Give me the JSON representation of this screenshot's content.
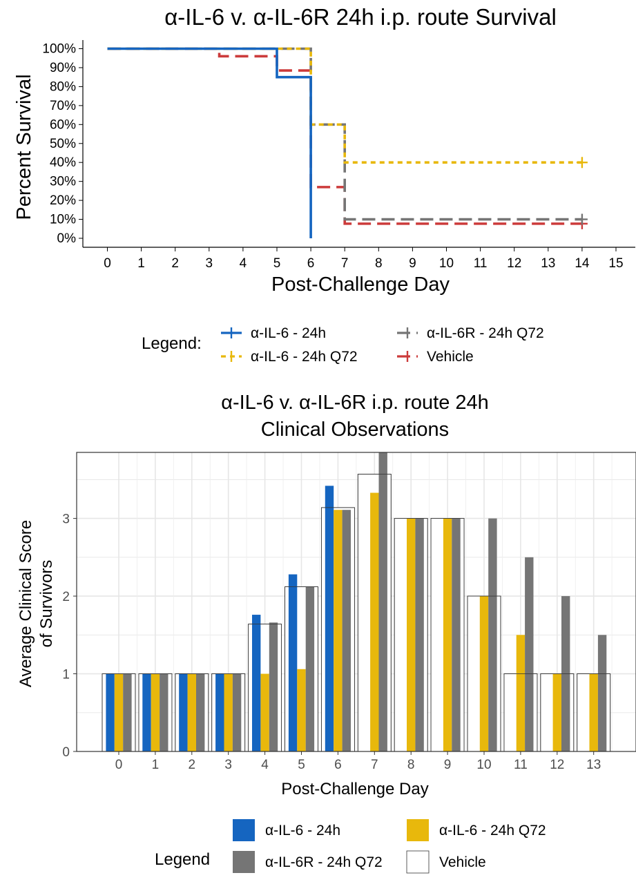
{
  "chart_data": [
    {
      "type": "line",
      "subtype": "kaplan-meier step",
      "title": "α-IL-6 v. α-IL-6R 24h i.p. route Survival",
      "xlabel": "Post-Challenge Day",
      "ylabel": "Percent Survival",
      "xlim": [
        0,
        15
      ],
      "ylim": [
        0,
        100
      ],
      "x_ticks": [
        "0",
        "1",
        "2",
        "3",
        "4",
        "5",
        "6",
        "7",
        "8",
        "9",
        "10",
        "11",
        "12",
        "13",
        "14",
        "15"
      ],
      "y_ticks": [
        "0%",
        "10%",
        "20%",
        "30%",
        "40%",
        "50%",
        "60%",
        "70%",
        "80%",
        "90%",
        "100%"
      ],
      "grid": false,
      "legend_title": "Legend:",
      "legend_position": "bottom",
      "series": [
        {
          "name": "α-IL-6 - 24h",
          "color": "#1565c0",
          "dash": "solid",
          "x": [
            0,
            5,
            6
          ],
          "y": [
            100,
            85,
            0
          ],
          "end_x": 6,
          "censor": []
        },
        {
          "name": "α-IL-6 - 24h Q72",
          "color": "#e8b80c",
          "dash": "dotted",
          "x": [
            0,
            6,
            7
          ],
          "y": [
            100,
            60,
            40
          ],
          "end_x": 14,
          "censor": [
            [
              14,
              40
            ]
          ]
        },
        {
          "name": "α-IL-6R - 24h Q72",
          "color": "#757575",
          "dash": "dashed",
          "x": [
            0,
            6,
            7
          ],
          "y": [
            100,
            60,
            10
          ],
          "end_x": 14,
          "censor": [
            [
              14,
              10
            ]
          ]
        },
        {
          "name": "Vehicle",
          "color": "#cc3b3b",
          "dash": "dashed",
          "x": [
            0,
            3.3,
            5,
            6,
            7
          ],
          "y": [
            100,
            96,
            88.5,
            27,
            7.7
          ],
          "end_x": 14,
          "censor": [
            [
              14,
              7.7
            ]
          ]
        }
      ]
    },
    {
      "type": "bar",
      "title_lines": [
        "α-IL-6 v. α-IL-6R i.p. route 24h",
        "Clinical Observations"
      ],
      "xlabel": "Post-Challenge Day",
      "ylabel_lines": [
        "Average Clinical Score",
        "of Survivors"
      ],
      "categories": [
        "0",
        "1",
        "2",
        "3",
        "4",
        "5",
        "6",
        "7",
        "8",
        "9",
        "10",
        "11",
        "12",
        "13"
      ],
      "ylim": [
        0,
        3.85
      ],
      "y_ticks": [
        "0",
        "1",
        "2",
        "3"
      ],
      "grid": true,
      "legend_title": "Legend",
      "legend_position": "bottom",
      "series": [
        {
          "name": "α-IL-6 - 24h",
          "color": "#1565c0",
          "values": [
            1,
            1,
            1,
            1,
            1.76,
            2.28,
            3.42,
            null,
            null,
            null,
            null,
            null,
            null,
            null
          ]
        },
        {
          "name": "α-IL-6 - 24h Q72",
          "color": "#e8b80c",
          "values": [
            1,
            1,
            1,
            1,
            1,
            1.06,
            3.11,
            3.33,
            3,
            3,
            2,
            1.5,
            1,
            1
          ]
        },
        {
          "name": "α-IL-6R - 24h Q72",
          "color": "#757575",
          "values": [
            1,
            1,
            1,
            1,
            1.66,
            2.12,
            3.11,
            4,
            3,
            3,
            3,
            2.5,
            2,
            1.5
          ]
        },
        {
          "name": "Vehicle",
          "color": "#ffffff",
          "outline": true,
          "values": [
            1,
            1,
            1,
            1,
            1.64,
            2.12,
            3.14,
            3.57,
            3,
            3,
            2,
            1,
            1,
            1
          ]
        }
      ]
    }
  ]
}
